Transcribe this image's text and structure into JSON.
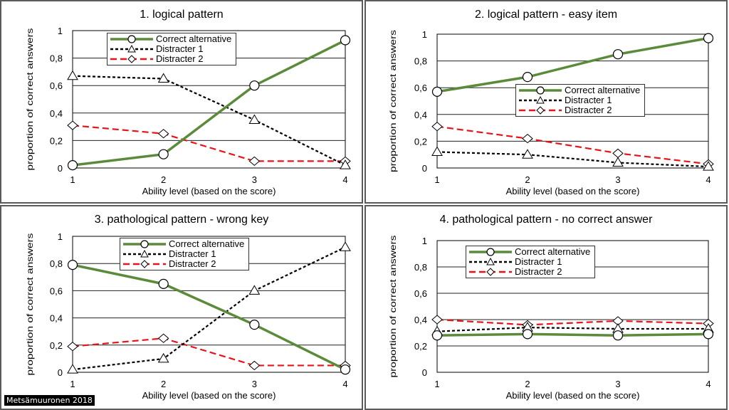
{
  "colors": {
    "correct": "#5b8b3a",
    "distracter1": "#000000",
    "distracter2": "#e8141a",
    "grid": "#222222"
  },
  "credit": "Metsämuuronen 2018",
  "chart_data": [
    {
      "type": "line",
      "title": "1. logical pattern",
      "xlabel": "Ability level (based on the score)",
      "ylabel": "proportion of correct answers",
      "x": [
        1,
        2,
        3,
        4
      ],
      "xticks": [
        "1",
        "2",
        "3",
        "4"
      ],
      "yticks": [
        "0",
        "0,2",
        "0,4",
        "0,6",
        "0,8",
        "1"
      ],
      "ylim": [
        0,
        1
      ],
      "legend_position": "top-center",
      "series": [
        {
          "name": "Correct alternative",
          "values": [
            0.02,
            0.1,
            0.6,
            0.93
          ]
        },
        {
          "name": "Distracter 1",
          "values": [
            0.67,
            0.65,
            0.35,
            0.02
          ]
        },
        {
          "name": "Distracter 2",
          "values": [
            0.31,
            0.25,
            0.05,
            0.05
          ]
        }
      ]
    },
    {
      "type": "line",
      "title": "2. logical pattern - easy item",
      "xlabel": "Ability level (based on the score)",
      "ylabel": "proportion of correct answers",
      "x": [
        1,
        2,
        3,
        4
      ],
      "xticks": [
        "1",
        "2",
        "3",
        "4"
      ],
      "yticks": [
        "0",
        "0,2",
        "0,4",
        "0,6",
        "0,8",
        "1"
      ],
      "ylim": [
        0,
        1
      ],
      "legend_position": "middle-right",
      "series": [
        {
          "name": "Correct alternative",
          "values": [
            0.57,
            0.68,
            0.85,
            0.97
          ]
        },
        {
          "name": "Distracter 1",
          "values": [
            0.12,
            0.1,
            0.04,
            0.01
          ]
        },
        {
          "name": "Distracter 2",
          "values": [
            0.31,
            0.22,
            0.11,
            0.03
          ]
        }
      ]
    },
    {
      "type": "line",
      "title": "3. pathological pattern - wrong key",
      "xlabel": "Ability level (based on the score)",
      "ylabel": "proportion of correct answers",
      "x": [
        1,
        2,
        3,
        4
      ],
      "xticks": [
        "1",
        "2",
        "3",
        "4"
      ],
      "yticks": [
        "0",
        "0,2",
        "0,4",
        "0,6",
        "0,8",
        "1"
      ],
      "ylim": [
        0,
        1
      ],
      "legend_position": "top-center",
      "series": [
        {
          "name": "Correct alternative",
          "values": [
            0.79,
            0.65,
            0.35,
            0.02
          ]
        },
        {
          "name": "Distracter 1",
          "values": [
            0.02,
            0.1,
            0.6,
            0.92
          ]
        },
        {
          "name": "Distracter 2",
          "values": [
            0.19,
            0.25,
            0.05,
            0.05
          ]
        }
      ]
    },
    {
      "type": "line",
      "title": "4. pathological pattern - no correct answer",
      "xlabel": "Ability level (based on the score)",
      "ylabel": "proportion of correct answers",
      "x": [
        1,
        2,
        3,
        4
      ],
      "xticks": [
        "1",
        "2",
        "3",
        "4"
      ],
      "yticks": [
        "0",
        "0,2",
        "0,4",
        "0,6",
        "0,8",
        "1"
      ],
      "ylim": [
        0,
        1
      ],
      "legend_position": "top-center",
      "series": [
        {
          "name": "Correct alternative",
          "values": [
            0.28,
            0.29,
            0.28,
            0.29
          ]
        },
        {
          "name": "Distracter 1",
          "values": [
            0.31,
            0.34,
            0.33,
            0.33
          ]
        },
        {
          "name": "Distracter 2",
          "values": [
            0.4,
            0.36,
            0.39,
            0.37
          ]
        }
      ]
    }
  ]
}
